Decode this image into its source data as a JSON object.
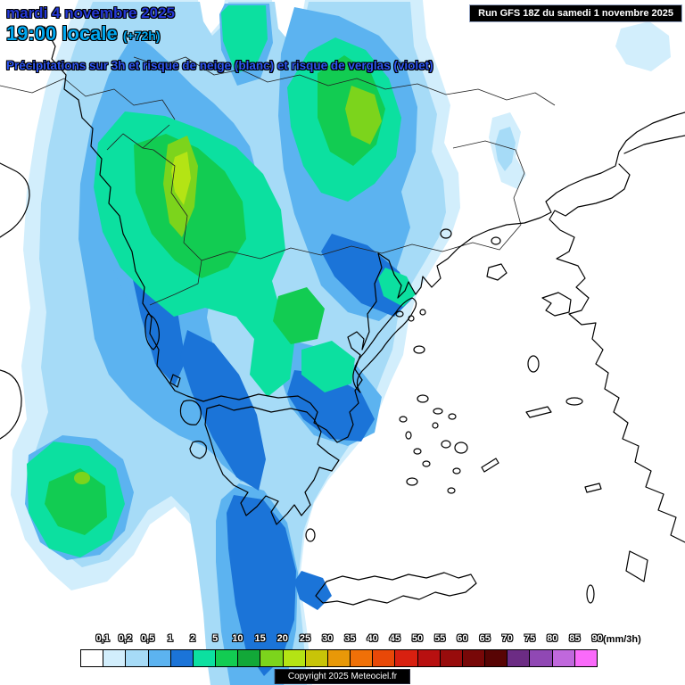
{
  "header": {
    "date": "mardi 4 novembre 2025",
    "time": "19:00 locale",
    "offset": "(+72h)",
    "subtitle": "Précipitations sur 3h et risque de neige (blanc) et risque de verglas (violet)",
    "colors": {
      "date": "#2438D6",
      "time": "#00A8F0",
      "subtitle": "#2E55F2"
    }
  },
  "run_box": {
    "text": "Run GFS 18Z du samedi 1 novembre 2025",
    "bg": "#000000",
    "fg": "#FFFFFF"
  },
  "legend": {
    "unit": "(mm/3h)",
    "unit_color": "#000000",
    "label_color": "#FFFFFF",
    "labels": [
      "0,1",
      "0,2",
      "0,5",
      "1",
      "2",
      "5",
      "10",
      "15",
      "20",
      "25",
      "30",
      "35",
      "40",
      "45",
      "50",
      "55",
      "60",
      "65",
      "70",
      "75",
      "80",
      "85",
      "90"
    ],
    "colors": [
      "#FFFFFF",
      "#D2EEFC",
      "#A6DBF7",
      "#5CB3F0",
      "#1B74D8",
      "#0CE0A0",
      "#12CC52",
      "#12A838",
      "#7CD41C",
      "#B4E414",
      "#C8C408",
      "#E89808",
      "#F07008",
      "#E84808",
      "#D82010",
      "#B81010",
      "#980C0C",
      "#780808",
      "#580404",
      "#6C2C84",
      "#9048B4",
      "#C068DC",
      "#FA6AFA"
    ]
  },
  "copyright": {
    "text": "Copyright 2025 Meteociel.fr",
    "bg": "#000000",
    "fg": "#FFFFFF"
  }
}
